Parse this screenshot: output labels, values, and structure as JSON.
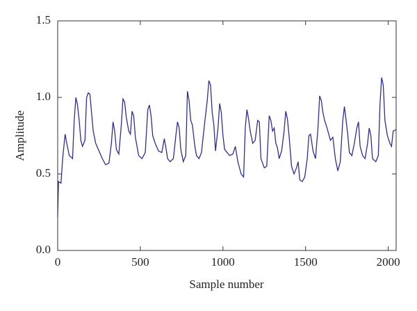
{
  "chart_data": {
    "type": "line",
    "xlabel": "Sample number",
    "ylabel": "Amplitude",
    "x": [
      0,
      5,
      20,
      30,
      45,
      55,
      70,
      90,
      100,
      110,
      120,
      130,
      140,
      150,
      165,
      175,
      185,
      195,
      205,
      215,
      230,
      250,
      270,
      290,
      310,
      325,
      335,
      345,
      355,
      370,
      385,
      395,
      405,
      415,
      430,
      440,
      450,
      460,
      470,
      490,
      510,
      530,
      545,
      555,
      565,
      575,
      590,
      610,
      630,
      645,
      655,
      665,
      680,
      700,
      715,
      725,
      735,
      745,
      760,
      775,
      785,
      795,
      805,
      815,
      830,
      840,
      855,
      870,
      890,
      905,
      915,
      925,
      935,
      945,
      955,
      970,
      980,
      990,
      1000,
      1010,
      1025,
      1040,
      1060,
      1075,
      1090,
      1110,
      1125,
      1135,
      1145,
      1155,
      1165,
      1180,
      1195,
      1210,
      1220,
      1230,
      1250,
      1265,
      1280,
      1290,
      1300,
      1310,
      1320,
      1330,
      1340,
      1355,
      1370,
      1380,
      1390,
      1400,
      1415,
      1430,
      1445,
      1455,
      1465,
      1480,
      1495,
      1510,
      1520,
      1530,
      1545,
      1560,
      1575,
      1585,
      1595,
      1605,
      1615,
      1630,
      1650,
      1665,
      1680,
      1695,
      1710,
      1725,
      1735,
      1745,
      1755,
      1765,
      1780,
      1795,
      1810,
      1820,
      1830,
      1845,
      1860,
      1875,
      1885,
      1895,
      1905,
      1925,
      1940,
      1950,
      1960,
      1970,
      1980,
      1995,
      2010,
      2020,
      2030,
      2048
    ],
    "series": [
      {
        "name": "Amplitude",
        "color": "#2e2e8f",
        "values": [
          0.22,
          0.45,
          0.44,
          0.6,
          0.76,
          0.7,
          0.62,
          0.6,
          0.85,
          1.0,
          0.95,
          0.85,
          0.72,
          0.68,
          0.72,
          1.0,
          1.03,
          1.02,
          0.9,
          0.78,
          0.7,
          0.65,
          0.6,
          0.56,
          0.57,
          0.7,
          0.84,
          0.78,
          0.66,
          0.63,
          0.82,
          0.99,
          0.97,
          0.87,
          0.78,
          0.76,
          0.91,
          0.88,
          0.74,
          0.62,
          0.6,
          0.64,
          0.92,
          0.95,
          0.88,
          0.75,
          0.7,
          0.65,
          0.64,
          0.73,
          0.67,
          0.6,
          0.58,
          0.6,
          0.75,
          0.84,
          0.8,
          0.66,
          0.58,
          0.62,
          1.04,
          0.98,
          0.85,
          0.82,
          0.68,
          0.62,
          0.6,
          0.64,
          0.84,
          0.98,
          1.11,
          1.08,
          0.9,
          0.82,
          0.65,
          0.8,
          0.96,
          0.9,
          0.75,
          0.66,
          0.64,
          0.62,
          0.63,
          0.68,
          0.58,
          0.5,
          0.48,
          0.8,
          0.92,
          0.86,
          0.78,
          0.7,
          0.72,
          0.85,
          0.84,
          0.6,
          0.54,
          0.55,
          0.88,
          0.85,
          0.78,
          0.8,
          0.7,
          0.67,
          0.6,
          0.65,
          0.78,
          0.91,
          0.86,
          0.75,
          0.55,
          0.5,
          0.54,
          0.58,
          0.46,
          0.45,
          0.48,
          0.6,
          0.75,
          0.76,
          0.65,
          0.6,
          0.8,
          1.01,
          0.98,
          0.9,
          0.85,
          0.8,
          0.72,
          0.74,
          0.6,
          0.52,
          0.58,
          0.85,
          0.94,
          0.85,
          0.76,
          0.64,
          0.62,
          0.7,
          0.8,
          0.84,
          0.68,
          0.62,
          0.6,
          0.7,
          0.8,
          0.75,
          0.6,
          0.58,
          0.62,
          0.95,
          1.13,
          1.08,
          0.85,
          0.75,
          0.7,
          0.68,
          0.78,
          0.79
        ]
      }
    ],
    "xlim": [
      0,
      2048
    ],
    "xticks": [
      0,
      500,
      1000,
      1500,
      2000
    ],
    "ylim": [
      0,
      1.5
    ],
    "yticks": [
      {
        "value": 0,
        "label": "0.0"
      },
      {
        "value": 0.5,
        "label": "0.5"
      },
      {
        "value": 1,
        "label": "1.0"
      },
      {
        "value": 1.5,
        "label": "1.5"
      }
    ]
  }
}
